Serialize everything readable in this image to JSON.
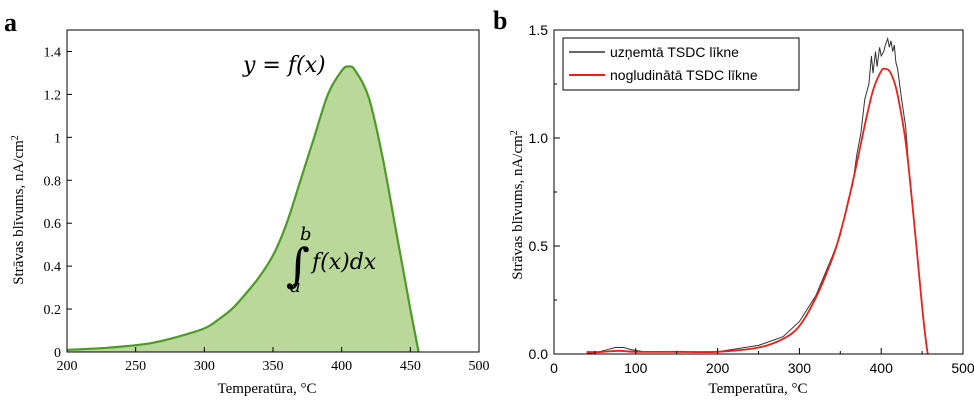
{
  "chart_data": [
    {
      "panel": "a",
      "type": "area",
      "xlabel": "Temperatūra, ",
      "xlabel_unit": "°C",
      "ylabel": "Strāvas blīvums, nA/cm",
      "ylabel_sup": "2",
      "xlim": [
        200,
        500
      ],
      "ylim": [
        0,
        1.5
      ],
      "xticks": [
        "200",
        "250",
        "300",
        "350",
        "400",
        "450",
        "500"
      ],
      "yticks": [
        "0",
        "0.2",
        "0.4",
        "0.6",
        "0.8",
        "1",
        "1.2",
        "1.4"
      ],
      "colors": {
        "line": "#4e9a28",
        "fill": "#b9d89a"
      },
      "annotations": {
        "function": "y = f(x)",
        "integral_upper": "b",
        "integral_lower": "a",
        "integral_body": "f(x)dx"
      },
      "series": [
        {
          "x": [
            200,
            230,
            260,
            280,
            300,
            310,
            320,
            330,
            340,
            350,
            360,
            370,
            380,
            390,
            400,
            405,
            410,
            420,
            430,
            440,
            450,
            456
          ],
          "y": [
            0.01,
            0.02,
            0.04,
            0.07,
            0.11,
            0.15,
            0.2,
            0.27,
            0.35,
            0.45,
            0.6,
            0.8,
            1.0,
            1.2,
            1.31,
            1.33,
            1.31,
            1.18,
            0.9,
            0.55,
            0.2,
            0.0
          ]
        }
      ]
    },
    {
      "panel": "b",
      "type": "line",
      "xlabel": "Temperatūra, ",
      "xlabel_unit": "°C",
      "ylabel": "Strāvas blīvums, nA/cm",
      "ylabel_sup": "2",
      "xlim": [
        0,
        500
      ],
      "ylim": [
        0,
        1.5
      ],
      "xticks": [
        "0",
        "100",
        "200",
        "300",
        "400",
        "500"
      ],
      "yticks": [
        "0.0",
        "0.5",
        "1.0",
        "1.5"
      ],
      "legend_position": "top-left",
      "series": [
        {
          "name": "uzņemtā TSDC līkne",
          "color": "#333333",
          "x": [
            40,
            55,
            65,
            75,
            80,
            85,
            95,
            110,
            150,
            200,
            250,
            280,
            300,
            320,
            340,
            350,
            360,
            365,
            370,
            375,
            380,
            385,
            388,
            390,
            393,
            395,
            398,
            400,
            403,
            405,
            408,
            410,
            412,
            414,
            416,
            418,
            420,
            425,
            430,
            435,
            440,
            445,
            450,
            453,
            455,
            457
          ],
          "y": [
            0.01,
            0.01,
            0.02,
            0.03,
            0.03,
            0.03,
            0.02,
            0.01,
            0.01,
            0.01,
            0.04,
            0.08,
            0.15,
            0.27,
            0.45,
            0.55,
            0.72,
            0.78,
            0.92,
            1.02,
            1.18,
            1.25,
            1.38,
            1.3,
            1.4,
            1.33,
            1.42,
            1.38,
            1.4,
            1.43,
            1.46,
            1.42,
            1.45,
            1.4,
            1.43,
            1.35,
            1.32,
            1.18,
            1.05,
            0.8,
            0.62,
            0.42,
            0.22,
            0.12,
            0.05,
            0.0
          ]
        },
        {
          "name": "nogludinātā TSDC līkne",
          "color": "#e8211a",
          "x": [
            40,
            60,
            80,
            100,
            150,
            200,
            250,
            280,
            300,
            320,
            340,
            350,
            360,
            370,
            380,
            390,
            400,
            405,
            410,
            415,
            420,
            430,
            440,
            450,
            455,
            457
          ],
          "y": [
            0.005,
            0.01,
            0.015,
            0.01,
            0.01,
            0.01,
            0.03,
            0.07,
            0.13,
            0.26,
            0.44,
            0.56,
            0.71,
            0.88,
            1.06,
            1.22,
            1.31,
            1.32,
            1.31,
            1.27,
            1.2,
            0.98,
            0.62,
            0.22,
            0.05,
            0.0
          ]
        }
      ]
    }
  ]
}
